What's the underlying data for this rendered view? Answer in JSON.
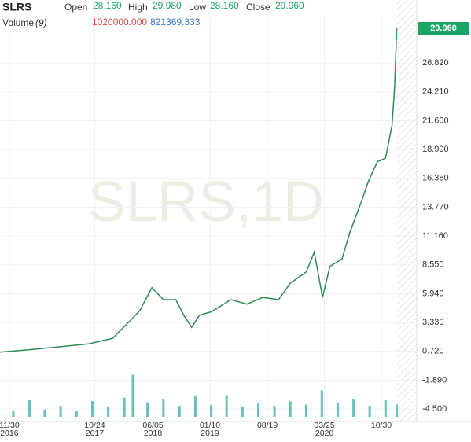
{
  "header": {
    "symbol": "SLRS",
    "open_label": "Open",
    "open": "28.160",
    "high_label": "High",
    "high": "29.980",
    "low_label": "Low",
    "low": "28.160",
    "close_label": "Close",
    "close": "29.960",
    "volume_label": "Volume",
    "volume_period": "(9)",
    "volume": "1020000.000",
    "volume_avg": "821369.333"
  },
  "watermark": "SLRS,1D",
  "chart_data": {
    "type": "line",
    "color": "#2e8b57",
    "grid": true,
    "xlim": [
      "2016-10-25",
      "2021-03-15"
    ],
    "ylim": [
      -5.63,
      31.1
    ],
    "yticks": [
      {
        "value": 26.82,
        "label": "26.820"
      },
      {
        "value": 24.21,
        "label": "24.210"
      },
      {
        "value": 21.6,
        "label": "21.600"
      },
      {
        "value": 18.99,
        "label": "18.990"
      },
      {
        "value": 16.38,
        "label": "16.380"
      },
      {
        "value": 13.77,
        "label": "13.770"
      },
      {
        "value": 11.16,
        "label": "11.160"
      },
      {
        "value": 8.55,
        "label": "8.550"
      },
      {
        "value": 5.94,
        "label": "5.940"
      },
      {
        "value": 3.33,
        "label": "3.330"
      },
      {
        "value": 0.72,
        "label": "0.720"
      },
      {
        "value": -1.89,
        "label": "-1.890"
      },
      {
        "value": -4.5,
        "label": "-4.500"
      }
    ],
    "xticks": [
      {
        "value": "2016-11-30",
        "label": "11/30",
        "year": "2016"
      },
      {
        "value": "2017-10-24",
        "label": "10/24",
        "year": "2017"
      },
      {
        "value": "2018-06-05",
        "label": "06/05",
        "year": "2018"
      },
      {
        "value": "2019-01-10",
        "label": "01/10",
        "year": "2019"
      },
      {
        "value": "2019-08-19",
        "label": "08/19",
        "year": null
      },
      {
        "value": "2020-03-25",
        "label": "03/25",
        "year": "2020"
      },
      {
        "value": "2020-10-30",
        "label": "10/30",
        "year": null
      }
    ],
    "last_price": {
      "value": 29.96,
      "label": "29.960"
    },
    "series": [
      {
        "name": "SLRS",
        "color": "#2e8b57",
        "x": [
          "2016-10-25",
          "2017-03-01",
          "2017-10-01",
          "2018-01-01",
          "2018-03-01",
          "2018-04-15",
          "2018-06-01",
          "2018-07-15",
          "2018-09-01",
          "2018-10-01",
          "2018-11-01",
          "2018-12-01",
          "2019-01-15",
          "2019-04-01",
          "2019-06-01",
          "2019-08-01",
          "2019-10-01",
          "2019-11-15",
          "2020-01-15",
          "2020-02-15",
          "2020-03-18",
          "2020-04-15",
          "2020-06-01",
          "2020-07-01",
          "2020-08-10",
          "2020-09-10",
          "2020-10-15",
          "2020-11-15",
          "2020-12-10",
          "2020-12-20",
          "2020-12-28"
        ],
        "values": [
          0.65,
          0.9,
          1.4,
          1.9,
          3.3,
          4.4,
          6.5,
          5.4,
          5.4,
          4.0,
          2.9,
          4.0,
          4.3,
          5.4,
          5.0,
          5.6,
          5.4,
          6.9,
          7.9,
          9.7,
          5.6,
          8.4,
          9.1,
          11.5,
          14.0,
          16.1,
          17.9,
          18.2,
          21.2,
          24.7,
          29.96
        ]
      }
    ],
    "volume": {
      "color": "#26a69a",
      "ylim": [
        0,
        3600000
      ],
      "x": [
        "2016-12-15",
        "2017-02-15",
        "2017-04-15",
        "2017-06-15",
        "2017-08-15",
        "2017-10-15",
        "2017-12-15",
        "2018-02-15",
        "2018-03-20",
        "2018-05-15",
        "2018-07-15",
        "2018-09-15",
        "2018-11-15",
        "2019-01-15",
        "2019-03-15",
        "2019-05-15",
        "2019-07-15",
        "2019-09-15",
        "2019-11-15",
        "2020-01-15",
        "2020-03-15",
        "2020-05-15",
        "2020-07-15",
        "2020-09-15",
        "2020-11-15",
        "2020-12-28"
      ],
      "values": [
        500000,
        1400000,
        600000,
        900000,
        500000,
        1300000,
        800000,
        1600000,
        3500000,
        1200000,
        1500000,
        900000,
        1700000,
        1000000,
        1800000,
        800000,
        1100000,
        900000,
        1300000,
        1000000,
        2200000,
        1200000,
        1500000,
        900000,
        1400000,
        1020000
      ]
    }
  }
}
